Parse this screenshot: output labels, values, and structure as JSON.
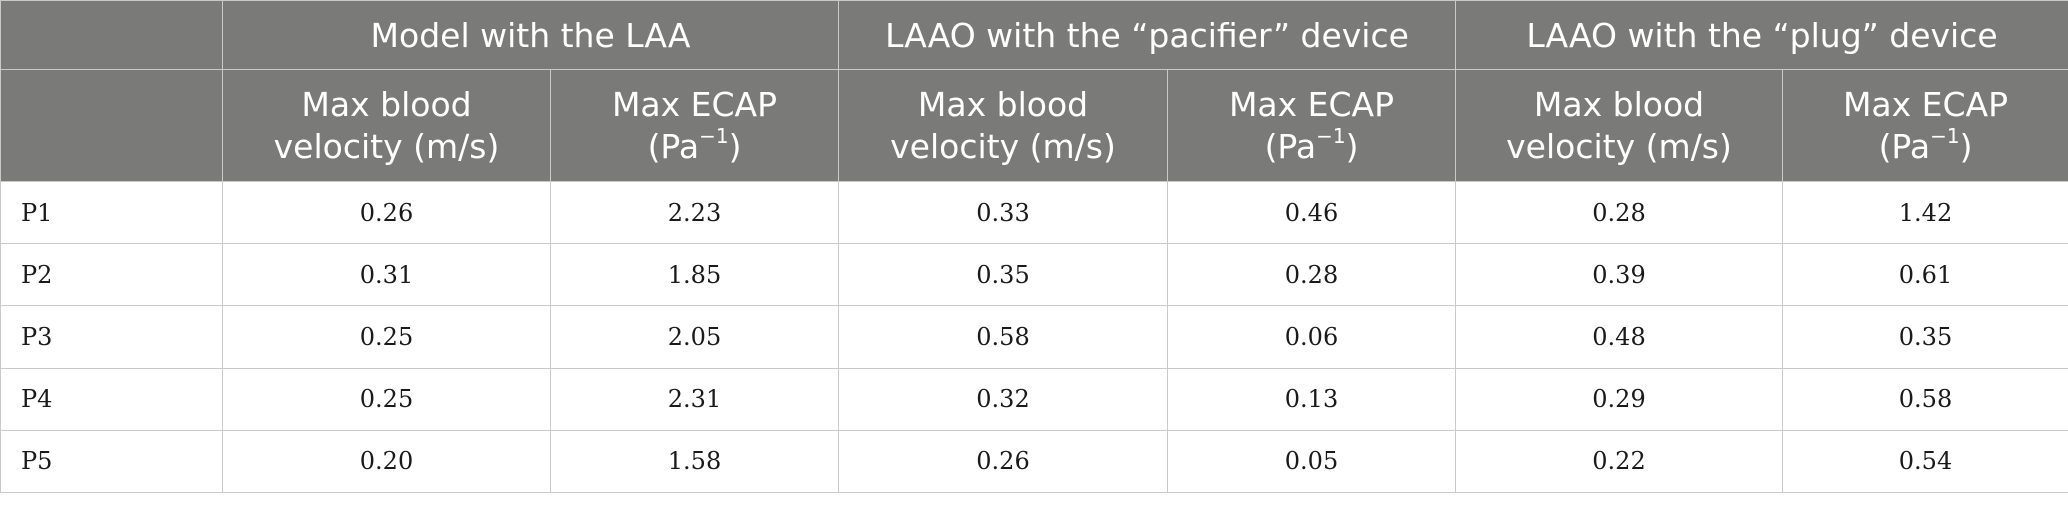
{
  "table": {
    "group_headers": [
      "",
      "Model with the LAA",
      "LAAO with the “pacifier” device",
      "LAAO with the “plug” device"
    ],
    "sub_headers": {
      "velocity_line1": "Max blood",
      "velocity_line2": "velocity (m/s)",
      "ecap_line1": "Max ECAP",
      "ecap_unit_base": "(Pa",
      "ecap_unit_exp": "−1",
      "ecap_unit_close": ")"
    },
    "rows": [
      {
        "label": "P1",
        "values": [
          "0.26",
          "2.23",
          "0.33",
          "0.46",
          "0.28",
          "1.42"
        ]
      },
      {
        "label": "P2",
        "values": [
          "0.31",
          "1.85",
          "0.35",
          "0.28",
          "0.39",
          "0.61"
        ]
      },
      {
        "label": "P3",
        "values": [
          "0.25",
          "2.05",
          "0.58",
          "0.06",
          "0.48",
          "0.35"
        ]
      },
      {
        "label": "P4",
        "values": [
          "0.25",
          "2.31",
          "0.32",
          "0.13",
          "0.29",
          "0.58"
        ]
      },
      {
        "label": "P5",
        "values": [
          "0.20",
          "1.58",
          "0.26",
          "0.05",
          "0.22",
          "0.54"
        ]
      }
    ]
  }
}
